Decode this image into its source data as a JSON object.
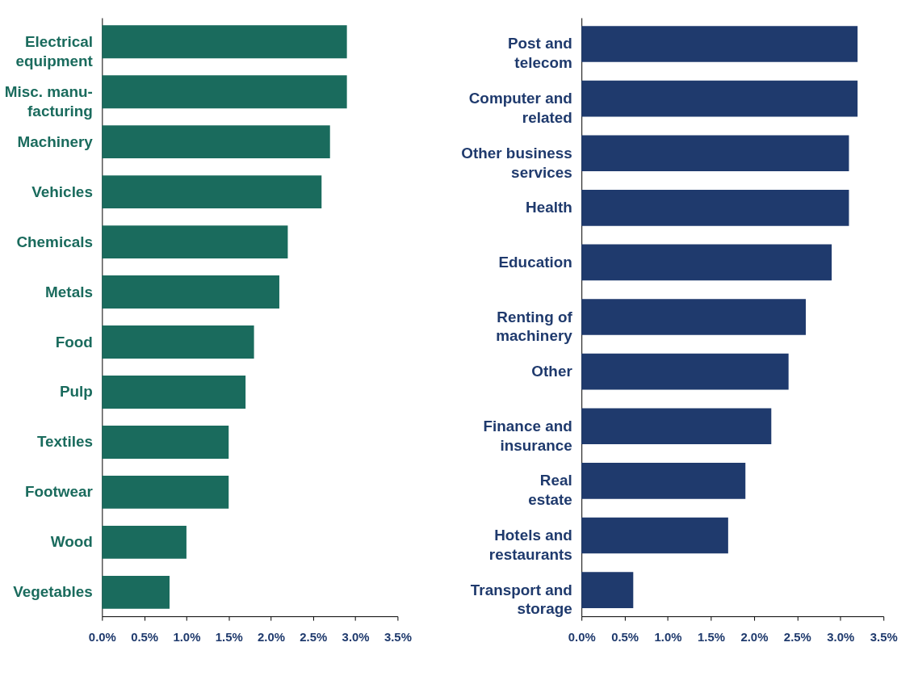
{
  "chart_data": [
    {
      "type": "bar",
      "orientation": "horizontal",
      "categories": [
        "Electrical\nequipment",
        "Misc. manu-\nfacturing",
        "Machinery",
        "Vehicles",
        "Chemicals",
        "Metals",
        "Food",
        "Pulp",
        "Textiles",
        "Footwear",
        "Wood",
        "Vegetables"
      ],
      "values": [
        2.9,
        2.9,
        2.7,
        2.6,
        2.2,
        2.1,
        1.8,
        1.7,
        1.5,
        1.5,
        1.0,
        0.8
      ],
      "color": "#1a6b5d",
      "xlim": [
        0,
        3.5
      ],
      "xticks": [
        {
          "value": 0,
          "label": "0.0%"
        },
        {
          "value": 0.5,
          "label": "0.5%"
        },
        {
          "value": 1,
          "label": "1.0%"
        },
        {
          "value": 1.5,
          "label": "1.5%"
        },
        {
          "value": 2,
          "label": "2.0%"
        },
        {
          "value": 2.5,
          "label": "2.5%"
        },
        {
          "value": 3,
          "label": "3.0%"
        },
        {
          "value": 3.5,
          "label": "3.5%"
        }
      ],
      "grid": false
    },
    {
      "type": "bar",
      "orientation": "horizontal",
      "categories": [
        "Post and\ntelecom",
        "Computer and\nrelated",
        "Other business\nservices",
        "Health",
        "Education",
        "Renting of\nmachinery",
        "Other",
        "Finance and\ninsurance",
        "Real\nestate",
        "Hotels and\nrestaurants",
        "Transport and\nstorage"
      ],
      "values": [
        3.2,
        3.2,
        3.1,
        3.1,
        2.9,
        2.6,
        2.4,
        2.2,
        1.9,
        1.7,
        0.6
      ],
      "color": "#1f3a6d",
      "xlim": [
        0,
        3.5
      ],
      "xticks": [
        {
          "value": 0,
          "label": "0.0%"
        },
        {
          "value": 0.5,
          "label": "0.5%"
        },
        {
          "value": 1,
          "label": "1.0%"
        },
        {
          "value": 1.5,
          "label": "1.5%"
        },
        {
          "value": 2,
          "label": "2.0%"
        },
        {
          "value": 2.5,
          "label": "2.5%"
        },
        {
          "value": 3,
          "label": "3.0%"
        },
        {
          "value": 3.5,
          "label": "3.5%"
        }
      ],
      "grid": false
    }
  ]
}
